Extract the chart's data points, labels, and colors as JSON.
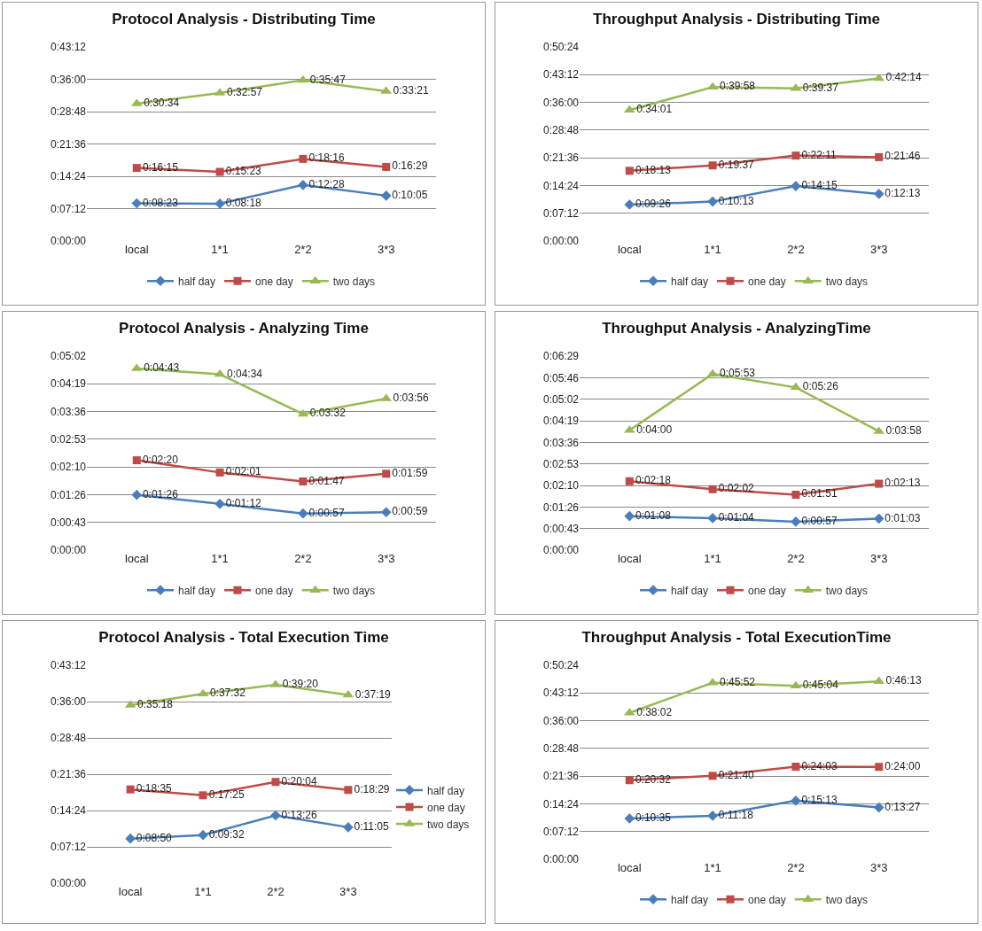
{
  "chart_data": [
    {
      "type": "line",
      "title": "Protocol Analysis - Distributing Time",
      "categories": [
        "local",
        "1*1",
        "2*2",
        "3*3"
      ],
      "ylim": [
        0,
        2592
      ],
      "yticks": [
        {
          "value": 0,
          "label": "0:00:00"
        },
        {
          "value": 432,
          "label": "0:07:12"
        },
        {
          "value": 864,
          "label": "0:14:24"
        },
        {
          "value": 1296,
          "label": "0:21:36"
        },
        {
          "value": 1728,
          "label": "0:28:48"
        },
        {
          "value": 2160,
          "label": "0:36:00"
        },
        {
          "value": 2592,
          "label": "0:43:12"
        }
      ],
      "grid": "y",
      "legend": "bottom",
      "line_style": "solid",
      "series": [
        {
          "name": "half day",
          "color": "#4a7ebb",
          "marker": "diamond",
          "values": [
            503,
            498,
            748,
            605
          ],
          "value_labels": [
            "0:08:23",
            "0:08:18",
            "0:12:28",
            "0:10:05"
          ]
        },
        {
          "name": "one day",
          "color": "#be4b48",
          "marker": "square",
          "values": [
            975,
            923,
            1096,
            989
          ],
          "value_labels": [
            "0:16:15",
            "0:15:23",
            "0:18:16",
            "0:16:29"
          ]
        },
        {
          "name": "two days",
          "color": "#98b954",
          "marker": "triangle",
          "values": [
            1834,
            1977,
            2147,
            2001
          ],
          "value_labels": [
            "0:30:34",
            "0:32:57",
            "0:35:47",
            "0:33:21"
          ]
        }
      ]
    },
    {
      "type": "line",
      "title": "Throughput Analysis - Distributing Time",
      "categories": [
        "local",
        "1*1",
        "2*2",
        "3*3"
      ],
      "ylim": [
        0,
        3024
      ],
      "yticks": [
        {
          "value": 0,
          "label": "0:00:00"
        },
        {
          "value": 432,
          "label": "0:07:12"
        },
        {
          "value": 864,
          "label": "0:14:24"
        },
        {
          "value": 1296,
          "label": "0:21:36"
        },
        {
          "value": 1728,
          "label": "0:28:48"
        },
        {
          "value": 2160,
          "label": "0:36:00"
        },
        {
          "value": 2592,
          "label": "0:43:12"
        },
        {
          "value": 3024,
          "label": "0:50:24"
        }
      ],
      "grid": "y",
      "legend": "bottom",
      "line_style": "solid",
      "series": [
        {
          "name": "half day",
          "color": "#4a7ebb",
          "marker": "diamond",
          "values": [
            566,
            613,
            855,
            733
          ],
          "value_labels": [
            "0:09:26",
            "0:10:13",
            "0:14:15",
            "0:12:13"
          ]
        },
        {
          "name": "one day",
          "color": "#be4b48",
          "marker": "square",
          "values": [
            1093,
            1177,
            1331,
            1306
          ],
          "value_labels": [
            "0:18:13",
            "0:19:37",
            "0:22:11",
            "0:21:46"
          ]
        },
        {
          "name": "two days",
          "color": "#98b954",
          "marker": "triangle",
          "values": [
            2041,
            2398,
            2377,
            2534
          ],
          "value_labels": [
            "0:34:01",
            "0:39:58",
            "0:39:37",
            "0:42:14"
          ]
        }
      ]
    },
    {
      "type": "line",
      "title": "Protocol Analysis - Analyzing Time",
      "categories": [
        "local",
        "1*1",
        "2*2",
        "3*3"
      ],
      "ylim": [
        0,
        302.4
      ],
      "yticks": [
        {
          "value": 0,
          "label": "0:00:00"
        },
        {
          "value": 43.2,
          "label": "0:00:43"
        },
        {
          "value": 86.4,
          "label": "0:01:26"
        },
        {
          "value": 129.6,
          "label": "0:02:10"
        },
        {
          "value": 172.8,
          "label": "0:02:53"
        },
        {
          "value": 216,
          "label": "0:03:36"
        },
        {
          "value": 259.2,
          "label": "0:04:19"
        },
        {
          "value": 302.4,
          "label": "0:05:02"
        }
      ],
      "grid": "y",
      "legend": "bottom",
      "line_style": "solid",
      "series": [
        {
          "name": "half day",
          "color": "#4a7ebb",
          "marker": "diamond",
          "values": [
            86,
            72,
            57,
            59
          ],
          "value_labels": [
            "0:01:26",
            "0:01:12",
            "0:00:57",
            "0:00:59"
          ]
        },
        {
          "name": "one day",
          "color": "#be4b48",
          "marker": "square",
          "values": [
            140,
            121,
            107,
            119
          ],
          "value_labels": [
            "0:02:20",
            "0:02:01",
            "0:01:47",
            "0:01:59"
          ]
        },
        {
          "name": "two days",
          "color": "#98b954",
          "marker": "triangle",
          "values": [
            283,
            274,
            212,
            236
          ],
          "value_labels": [
            "0:04:43",
            "0:04:34",
            "0:03:32",
            "0:03:56"
          ]
        }
      ]
    },
    {
      "type": "line",
      "title": "Throughput Analysis - AnalyzingTime",
      "categories": [
        "local",
        "1*1",
        "2*2",
        "3*3"
      ],
      "ylim": [
        0,
        388.8
      ],
      "yticks": [
        {
          "value": 0,
          "label": "0:00:00"
        },
        {
          "value": 43.2,
          "label": "0:00:43"
        },
        {
          "value": 86.4,
          "label": "0:01:26"
        },
        {
          "value": 129.6,
          "label": "0:02:10"
        },
        {
          "value": 172.8,
          "label": "0:02:53"
        },
        {
          "value": 216,
          "label": "0:03:36"
        },
        {
          "value": 259.2,
          "label": "0:04:19"
        },
        {
          "value": 302.4,
          "label": "0:05:02"
        },
        {
          "value": 345.6,
          "label": "0:05:46"
        },
        {
          "value": 388.8,
          "label": "0:06:29"
        }
      ],
      "grid": "y",
      "legend": "bottom",
      "line_style": "solid",
      "series": [
        {
          "name": "half day",
          "color": "#4a7ebb",
          "marker": "diamond",
          "values": [
            68,
            64,
            57,
            63
          ],
          "value_labels": [
            "0:01:08",
            "0:01:04",
            "0:00:57",
            "0:01:03"
          ]
        },
        {
          "name": "one day",
          "color": "#be4b48",
          "marker": "square",
          "values": [
            138,
            122,
            111,
            133
          ],
          "value_labels": [
            "0:02:18",
            "0:02:02",
            "0:01:51",
            "0:02:13"
          ]
        },
        {
          "name": "two days",
          "color": "#98b954",
          "marker": "triangle",
          "values": [
            240,
            353,
            326,
            238
          ],
          "value_labels": [
            "0:04:00",
            "0:05:53",
            "0:05:26",
            "0:03:58"
          ]
        }
      ]
    },
    {
      "type": "line",
      "title": "Protocol Analysis - Total Execution Time",
      "categories": [
        "local",
        "1*1",
        "2*2",
        "3*3"
      ],
      "ylim": [
        0,
        2592
      ],
      "yticks": [
        {
          "value": 0,
          "label": "0:00:00"
        },
        {
          "value": 432,
          "label": "0:07:12"
        },
        {
          "value": 864,
          "label": "0:14:24"
        },
        {
          "value": 1296,
          "label": "0:21:36"
        },
        {
          "value": 1728,
          "label": "0:28:48"
        },
        {
          "value": 2160,
          "label": "0:36:00"
        },
        {
          "value": 2592,
          "label": "0:43:12"
        }
      ],
      "grid": "y",
      "legend": "right",
      "line_style": "solid",
      "series": [
        {
          "name": "half day",
          "color": "#4a7ebb",
          "marker": "diamond",
          "values": [
            530,
            572,
            806,
            665
          ],
          "value_labels": [
            "0:08:50",
            "0:09:32",
            "0:13:26",
            "0:11:05"
          ]
        },
        {
          "name": "one day",
          "color": "#be4b48",
          "marker": "square",
          "values": [
            1115,
            1045,
            1204,
            1109
          ],
          "value_labels": [
            "0:18:35",
            "0:17:25",
            "0:20:04",
            "0:18:29"
          ]
        },
        {
          "name": "two days",
          "color": "#98b954",
          "marker": "triangle",
          "values": [
            2118,
            2252,
            2360,
            2239
          ],
          "value_labels": [
            "0:35:18",
            "0:37:32",
            "0:39:20",
            "0:37:19"
          ]
        }
      ]
    },
    {
      "type": "line",
      "title": "Throughput Analysis - Total ExecutionTime",
      "categories": [
        "local",
        "1*1",
        "2*2",
        "3*3"
      ],
      "ylim": [
        0,
        3024
      ],
      "yticks": [
        {
          "value": 0,
          "label": "0:00:00"
        },
        {
          "value": 432,
          "label": "0:07:12"
        },
        {
          "value": 864,
          "label": "0:14:24"
        },
        {
          "value": 1296,
          "label": "0:21:36"
        },
        {
          "value": 1728,
          "label": "0:28:48"
        },
        {
          "value": 2160,
          "label": "0:36:00"
        },
        {
          "value": 2592,
          "label": "0:43:12"
        },
        {
          "value": 3024,
          "label": "0:50:24"
        }
      ],
      "grid": "y",
      "legend": "bottom",
      "line_style": "solid",
      "series": [
        {
          "name": "half day",
          "color": "#4a7ebb",
          "marker": "diamond",
          "values": [
            635,
            678,
            913,
            807
          ],
          "value_labels": [
            "0:10:35",
            "0:11:18",
            "0:15:13",
            "0:13:27"
          ]
        },
        {
          "name": "one day",
          "color": "#be4b48",
          "marker": "square",
          "values": [
            1232,
            1300,
            1443,
            1440
          ],
          "value_labels": [
            "0:20:32",
            "0:21:40",
            "0:24:03",
            "0:24:00"
          ]
        },
        {
          "name": "two days",
          "color": "#98b954",
          "marker": "triangle",
          "values": [
            2282,
            2752,
            2704,
            2773
          ],
          "value_labels": [
            "0:38:02",
            "0:45:52",
            "0:45:04",
            "0:46:13"
          ]
        }
      ]
    }
  ]
}
